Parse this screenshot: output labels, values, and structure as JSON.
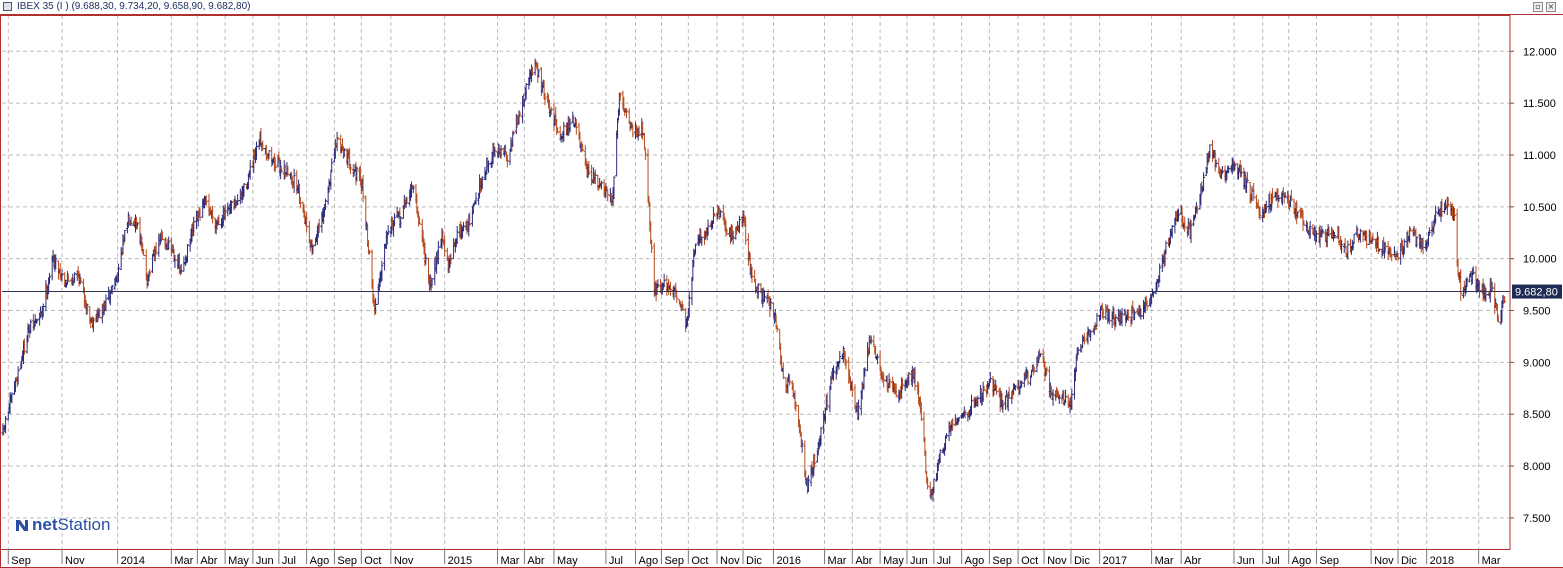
{
  "window": {
    "title": "IBEX 35 (I ) (9.688,30, 9.734,20, 9.658,90, 9.682,80)",
    "restore_glyph": "▫",
    "close_glyph": "×"
  },
  "brand": {
    "net": "net",
    "station": "Station"
  },
  "colors": {
    "up": "#2a2a7a",
    "down": "#b54a1e",
    "frame": "#b03030",
    "grid": "#bdbdbd",
    "last_line": "#333355"
  },
  "chart_data": {
    "type": "line",
    "title": "",
    "xlabel": "",
    "ylabel": "",
    "style": "ohlc-bars",
    "ylim": [
      7200,
      12350
    ],
    "y_ticks": [
      7500,
      8000,
      8500,
      9000,
      9500,
      10000,
      10500,
      11000,
      11500,
      12000
    ],
    "y_tick_labels": [
      "7.500",
      "8.000",
      "8.500",
      "9.000",
      "9.500",
      "10.000",
      "10.500",
      "11.000",
      "11.500",
      "12.000"
    ],
    "x_ticks": [
      {
        "label": "Sep",
        "date": "2013-09-02"
      },
      {
        "label": "Nov",
        "date": "2013-11-01"
      },
      {
        "label": "2014",
        "date": "2014-01-02"
      },
      {
        "label": "Mar",
        "date": "2014-03-03"
      },
      {
        "label": "Abr",
        "date": "2014-04-01"
      },
      {
        "label": "May",
        "date": "2014-05-02"
      },
      {
        "label": "Jun",
        "date": "2014-06-02"
      },
      {
        "label": "Jul",
        "date": "2014-07-01"
      },
      {
        "label": "Ago",
        "date": "2014-08-01"
      },
      {
        "label": "Sep",
        "date": "2014-09-01"
      },
      {
        "label": "Oct",
        "date": "2014-10-01"
      },
      {
        "label": "Nov",
        "date": "2014-11-03"
      },
      {
        "label": "2015",
        "date": "2015-01-02"
      },
      {
        "label": "Mar",
        "date": "2015-03-02"
      },
      {
        "label": "Abr",
        "date": "2015-04-01"
      },
      {
        "label": "May",
        "date": "2015-05-04"
      },
      {
        "label": "Jul",
        "date": "2015-07-01"
      },
      {
        "label": "Ago",
        "date": "2015-08-03"
      },
      {
        "label": "Sep",
        "date": "2015-09-01"
      },
      {
        "label": "Oct",
        "date": "2015-10-01"
      },
      {
        "label": "Nov",
        "date": "2015-11-02"
      },
      {
        "label": "Dic",
        "date": "2015-12-01"
      },
      {
        "label": "2016",
        "date": "2016-01-04"
      },
      {
        "label": "Mar",
        "date": "2016-03-01"
      },
      {
        "label": "Abr",
        "date": "2016-04-01"
      },
      {
        "label": "May",
        "date": "2016-05-02"
      },
      {
        "label": "Jun",
        "date": "2016-06-01"
      },
      {
        "label": "Jul",
        "date": "2016-07-01"
      },
      {
        "label": "Ago",
        "date": "2016-08-01"
      },
      {
        "label": "Sep",
        "date": "2016-09-01"
      },
      {
        "label": "Oct",
        "date": "2016-10-03"
      },
      {
        "label": "Nov",
        "date": "2016-11-01"
      },
      {
        "label": "Dic",
        "date": "2016-12-01"
      },
      {
        "label": "2017",
        "date": "2017-01-02"
      },
      {
        "label": "Mar",
        "date": "2017-03-01"
      },
      {
        "label": "Abr",
        "date": "2017-04-03"
      },
      {
        "label": "Jun",
        "date": "2017-06-01"
      },
      {
        "label": "Jul",
        "date": "2017-07-03"
      },
      {
        "label": "Ago",
        "date": "2017-08-01"
      },
      {
        "label": "Sep",
        "date": "2017-09-01"
      },
      {
        "label": "Nov",
        "date": "2017-11-01"
      },
      {
        "label": "Dic",
        "date": "2017-12-01"
      },
      {
        "label": "2018",
        "date": "2018-01-02"
      },
      {
        "label": "Mar",
        "date": "2018-03-01"
      }
    ],
    "last_value": 9682.8,
    "last_value_label": "9.682,80",
    "series": [
      {
        "points": [
          [
            "2013-08-27",
            8320
          ],
          [
            "2013-09-10",
            8800
          ],
          [
            "2013-09-24",
            9300
          ],
          [
            "2013-10-08",
            9450
          ],
          [
            "2013-10-22",
            10000
          ],
          [
            "2013-11-05",
            9780
          ],
          [
            "2013-11-19",
            9850
          ],
          [
            "2013-12-03",
            9400
          ],
          [
            "2013-12-17",
            9500
          ],
          [
            "2014-01-02",
            9850
          ],
          [
            "2014-01-14",
            10400
          ],
          [
            "2014-01-24",
            10350
          ],
          [
            "2014-02-04",
            9800
          ],
          [
            "2014-02-18",
            10200
          ],
          [
            "2014-03-04",
            10100
          ],
          [
            "2014-03-14",
            9850
          ],
          [
            "2014-03-28",
            10300
          ],
          [
            "2014-04-10",
            10550
          ],
          [
            "2014-04-22",
            10350
          ],
          [
            "2014-05-06",
            10450
          ],
          [
            "2014-05-20",
            10600
          ],
          [
            "2014-06-02",
            10900
          ],
          [
            "2014-06-10",
            11150
          ],
          [
            "2014-06-24",
            10950
          ],
          [
            "2014-07-08",
            10850
          ],
          [
            "2014-07-22",
            10700
          ],
          [
            "2014-08-07",
            10100
          ],
          [
            "2014-08-19",
            10400
          ],
          [
            "2014-09-04",
            11150
          ],
          [
            "2014-09-18",
            10950
          ],
          [
            "2014-10-02",
            10700
          ],
          [
            "2014-10-16",
            9500
          ],
          [
            "2014-10-30",
            10300
          ],
          [
            "2014-11-13",
            10400
          ],
          [
            "2014-11-27",
            10700
          ],
          [
            "2014-12-10",
            10100
          ],
          [
            "2014-12-16",
            9700
          ],
          [
            "2014-12-30",
            10250
          ],
          [
            "2015-01-06",
            9900
          ],
          [
            "2015-01-16",
            10250
          ],
          [
            "2015-01-30",
            10350
          ],
          [
            "2015-02-13",
            10800
          ],
          [
            "2015-02-27",
            11050
          ],
          [
            "2015-03-13",
            11000
          ],
          [
            "2015-03-27",
            11400
          ],
          [
            "2015-04-08",
            11800
          ],
          [
            "2015-04-14",
            11850
          ],
          [
            "2015-04-28",
            11450
          ],
          [
            "2015-05-12",
            11200
          ],
          [
            "2015-05-26",
            11350
          ],
          [
            "2015-06-09",
            10850
          ],
          [
            "2015-06-29",
            10650
          ],
          [
            "2015-07-08",
            10550
          ],
          [
            "2015-07-16",
            11600
          ],
          [
            "2015-07-30",
            11250
          ],
          [
            "2015-08-12",
            11250
          ],
          [
            "2015-08-24",
            9700
          ],
          [
            "2015-09-08",
            9750
          ],
          [
            "2015-09-22",
            9600
          ],
          [
            "2015-09-29",
            9350
          ],
          [
            "2015-10-09",
            10150
          ],
          [
            "2015-10-20",
            10250
          ],
          [
            "2015-11-03",
            10450
          ],
          [
            "2015-11-17",
            10200
          ],
          [
            "2015-12-01",
            10400
          ],
          [
            "2015-12-11",
            9800
          ],
          [
            "2015-12-23",
            9650
          ],
          [
            "2016-01-05",
            9500
          ],
          [
            "2016-01-14",
            8900
          ],
          [
            "2016-01-28",
            8650
          ],
          [
            "2016-02-11",
            7800
          ],
          [
            "2016-02-25",
            8300
          ],
          [
            "2016-03-08",
            8800
          ],
          [
            "2016-03-22",
            9100
          ],
          [
            "2016-04-07",
            8500
          ],
          [
            "2016-04-21",
            9250
          ],
          [
            "2016-05-05",
            8850
          ],
          [
            "2016-05-19",
            8700
          ],
          [
            "2016-06-08",
            8900
          ],
          [
            "2016-06-16",
            8600
          ],
          [
            "2016-06-24",
            7800
          ],
          [
            "2016-06-27",
            7650
          ],
          [
            "2016-07-08",
            8100
          ],
          [
            "2016-07-22",
            8450
          ],
          [
            "2016-08-05",
            8500
          ],
          [
            "2016-08-19",
            8650
          ],
          [
            "2016-09-02",
            8800
          ],
          [
            "2016-09-16",
            8600
          ],
          [
            "2016-09-30",
            8750
          ],
          [
            "2016-10-14",
            8850
          ],
          [
            "2016-10-28",
            9100
          ],
          [
            "2016-11-09",
            8700
          ],
          [
            "2016-11-18",
            8700
          ],
          [
            "2016-12-01",
            8600
          ],
          [
            "2016-12-09",
            9100
          ],
          [
            "2016-12-23",
            9300
          ],
          [
            "2017-01-06",
            9500
          ],
          [
            "2017-01-20",
            9400
          ],
          [
            "2017-02-03",
            9450
          ],
          [
            "2017-02-17",
            9500
          ],
          [
            "2017-03-03",
            9650
          ],
          [
            "2017-03-17",
            10100
          ],
          [
            "2017-03-31",
            10450
          ],
          [
            "2017-04-13",
            10250
          ],
          [
            "2017-04-24",
            10600
          ],
          [
            "2017-05-05",
            11050
          ],
          [
            "2017-05-19",
            10800
          ],
          [
            "2017-06-02",
            10900
          ],
          [
            "2017-06-16",
            10700
          ],
          [
            "2017-06-30",
            10450
          ],
          [
            "2017-07-14",
            10600
          ],
          [
            "2017-07-28",
            10600
          ],
          [
            "2017-08-11",
            10450
          ],
          [
            "2017-08-25",
            10250
          ],
          [
            "2017-09-08",
            10200
          ],
          [
            "2017-09-22",
            10250
          ],
          [
            "2017-10-04",
            10050
          ],
          [
            "2017-10-18",
            10250
          ],
          [
            "2017-11-03",
            10150
          ],
          [
            "2017-11-17",
            10100
          ],
          [
            "2017-12-01",
            10050
          ],
          [
            "2017-12-15",
            10250
          ],
          [
            "2017-12-29",
            10100
          ],
          [
            "2018-01-12",
            10400
          ],
          [
            "2018-01-26",
            10550
          ],
          [
            "2018-02-02",
            10400
          ],
          [
            "2018-02-06",
            9900
          ],
          [
            "2018-02-09",
            9700
          ],
          [
            "2018-02-23",
            9850
          ],
          [
            "2018-03-08",
            9650
          ],
          [
            "2018-03-16",
            9700
          ],
          [
            "2018-03-23",
            9400
          ],
          [
            "2018-03-27",
            9550
          ],
          [
            "2018-04-02",
            9683
          ]
        ]
      }
    ]
  }
}
